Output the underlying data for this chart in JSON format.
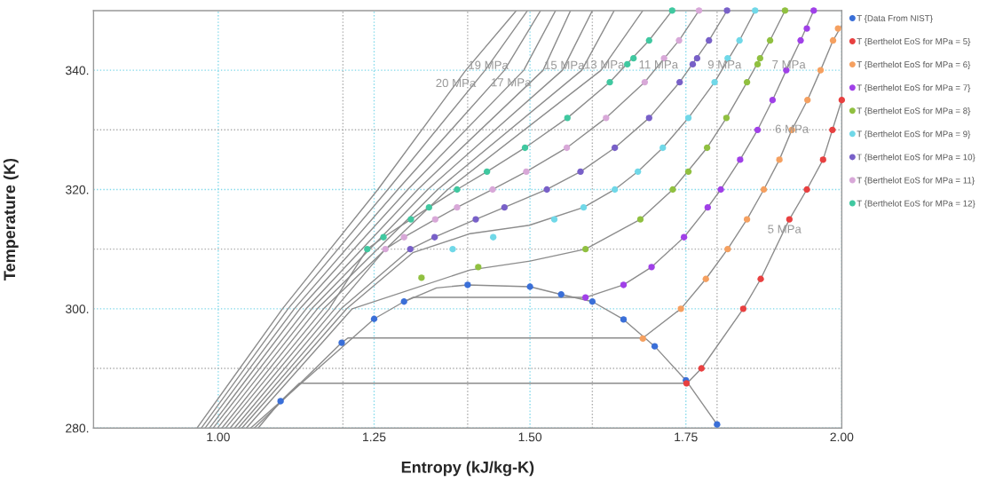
{
  "chart_data": {
    "type": "scatter",
    "xlabel": "Entropy (kJ/kg-K)",
    "ylabel": "Temperature (K)",
    "xlim": [
      0.8,
      2.0
    ],
    "ylim": [
      280,
      350
    ],
    "xticks": [
      {
        "value": 1.0,
        "label": "1.00"
      },
      {
        "value": 1.2,
        "label": null
      },
      {
        "value": 1.25,
        "label": "1.25"
      },
      {
        "value": 1.4,
        "label": null
      },
      {
        "value": 1.5,
        "label": "1.50"
      },
      {
        "value": 1.6,
        "label": null
      },
      {
        "value": 1.75,
        "label": "1.75"
      },
      {
        "value": 1.8,
        "label": null
      },
      {
        "value": 2.0,
        "label": "2.00"
      }
    ],
    "yticks": [
      {
        "value": 280,
        "label": "280."
      },
      {
        "value": 290,
        "label": null
      },
      {
        "value": 300,
        "label": "300."
      },
      {
        "value": 310,
        "label": null
      },
      {
        "value": 320,
        "label": "320."
      },
      {
        "value": 330,
        "label": null
      },
      {
        "value": 340,
        "label": "340."
      }
    ],
    "grid": true,
    "legend": "top right",
    "annotations": [
      {
        "text": "20 MPa",
        "x": 1.381,
        "y": 337.7
      },
      {
        "text": "19 MPa",
        "x": 1.433,
        "y": 340.7
      },
      {
        "text": "17 MPa",
        "x": 1.4695,
        "y": 337.8
      },
      {
        "text": "15 MPa",
        "x": 1.555,
        "y": 340.7
      },
      {
        "text": "13 MPa",
        "x": 1.619,
        "y": 340.8
      },
      {
        "text": "11 MPa",
        "x": 1.706,
        "y": 340.8
      },
      {
        "text": "9 MPa",
        "x": 1.812,
        "y": 340.8
      },
      {
        "text": "7 MPa",
        "x": 1.915,
        "y": 340.8
      },
      {
        "text": "6 MPa",
        "x": 1.92,
        "y": 330
      },
      {
        "text": "5 MPa",
        "x": 1.908,
        "y": 313.2
      }
    ],
    "series": [
      {
        "type": "line",
        "color": "#8c8c8c",
        "marker": "none",
        "x": [
          0.966,
          1.103,
          1.256,
          1.397,
          1.478
        ],
        "values": [
          280,
          300,
          320,
          340,
          350
        ]
      },
      {
        "type": "line",
        "color": "#8c8c8c",
        "marker": "none",
        "x": [
          0.973,
          1.112,
          1.272,
          1.428,
          1.496
        ],
        "values": [
          280,
          300,
          320,
          340,
          350
        ]
      },
      {
        "type": "line",
        "color": "#8c8c8c",
        "marker": "none",
        "x": [
          0.979,
          1.122,
          1.288,
          1.459,
          1.517
        ],
        "values": [
          280,
          300,
          320,
          340,
          350
        ]
      },
      {
        "type": "line",
        "color": "#8c8c8c",
        "marker": "none",
        "x": [
          0.986,
          1.131,
          1.304,
          1.49,
          1.541
        ],
        "values": [
          280,
          300,
          320,
          340,
          350
        ]
      },
      {
        "type": "line",
        "color": "#8c8c8c",
        "marker": "none",
        "x": [
          0.992,
          1.141,
          1.32,
          1.521,
          1.565
        ],
        "values": [
          280,
          300,
          320,
          340,
          350
        ]
      },
      {
        "type": "line",
        "color": "#8c8c8c",
        "marker": "none",
        "x": [
          0.999,
          1.15,
          1.336,
          1.552,
          1.6
        ],
        "values": [
          280,
          300,
          320,
          340,
          350
        ]
      },
      {
        "type": "line",
        "color": "#8c8c8c",
        "marker": "none",
        "x": [
          1.006,
          1.159,
          1.352,
          1.583,
          1.635
        ],
        "values": [
          280,
          300,
          320,
          340,
          350
        ]
      },
      {
        "type": "line",
        "color": "#8c8c8c",
        "marker": "none",
        "x": [
          1.012,
          1.169,
          1.368,
          1.614,
          1.681
        ],
        "values": [
          280,
          300,
          320,
          340,
          350
        ]
      },
      {
        "type": "line",
        "color": "#8c8c8c",
        "marker": "none",
        "x": [
          1.019,
          1.178,
          1.239,
          1.265,
          1.309,
          1.338,
          1.383,
          1.431,
          1.492,
          1.56,
          1.628,
          1.691,
          1.728
        ],
        "values": [
          280,
          300,
          310,
          312,
          315,
          317,
          320,
          323,
          327,
          332,
          338,
          345,
          350
        ]
      },
      {
        "type": "line",
        "color": "#8c8c8c",
        "marker": "none",
        "x": [
          1.026,
          1.187,
          1.268,
          1.298,
          1.348,
          1.383,
          1.44,
          1.494,
          1.559,
          1.622,
          1.684,
          1.739,
          1.771
        ],
        "values": [
          280,
          300,
          310,
          312,
          315,
          317,
          320,
          323,
          327,
          332,
          338,
          345,
          350
        ]
      },
      {
        "type": "line",
        "color": "#8c8c8c",
        "marker": "none",
        "x": [
          1.032,
          1.197,
          1.308,
          1.347,
          1.413,
          1.459,
          1.527,
          1.581,
          1.636,
          1.691,
          1.74,
          1.787,
          1.816
        ],
        "values": [
          280,
          300,
          310,
          312,
          315,
          317,
          320,
          323,
          327,
          332,
          338,
          345,
          350
        ]
      },
      {
        "type": "line",
        "color": "#8c8c8c",
        "marker": "none",
        "x": [
          1.038,
          1.206,
          1.312,
          1.404,
          1.499,
          1.586,
          1.636,
          1.673,
          1.713,
          1.754,
          1.796,
          1.836,
          1.861
        ],
        "values": [
          280,
          300,
          309.4,
          312.6,
          314,
          317,
          320,
          323,
          327,
          332,
          338,
          345,
          350
        ]
      },
      {
        "type": "line",
        "color": "#8c8c8c",
        "marker": "none",
        "x": [
          1.045,
          1.215,
          1.404,
          1.5,
          1.589,
          1.677,
          1.729,
          1.784,
          1.815,
          1.848,
          1.885,
          1.909
        ],
        "values": [
          280,
          300,
          306.5,
          308,
          310,
          315,
          320,
          327,
          332,
          338,
          345,
          350
        ]
      },
      {
        "type": "line",
        "color": "#8c8c8c",
        "marker": "none",
        "x": [
          1.052,
          1.25,
          1.298,
          1.312,
          1.589,
          1.65,
          1.695,
          1.747,
          1.785,
          1.806,
          1.837,
          1.865,
          1.889,
          1.911,
          1.934,
          1.955
        ],
        "values": [
          280,
          298.3,
          301.2,
          301.9,
          301.9,
          304,
          307,
          312,
          317,
          320,
          325,
          330,
          335,
          340,
          345,
          350
        ]
      },
      {
        "type": "line",
        "color": "#8c8c8c",
        "marker": "none",
        "x": [
          1.058,
          1.198,
          1.208,
          1.681,
          1.742,
          1.782,
          1.817,
          1.848,
          1.875,
          1.9,
          1.92,
          1.945,
          1.966,
          1.986,
          2.0
        ],
        "values": [
          280,
          294.3,
          295.1,
          295.1,
          300,
          305,
          310,
          315,
          320,
          325,
          330,
          335,
          340,
          345,
          347.5
        ]
      },
      {
        "type": "line",
        "color": "#8c8c8c",
        "marker": "none",
        "x": [
          1.064,
          1.1,
          1.13,
          1.752,
          1.775,
          1.842,
          1.87,
          1.916,
          1.944,
          1.97,
          1.985,
          2.0
        ],
        "values": [
          280,
          284.5,
          287.5,
          287.5,
          290,
          300,
          305,
          315,
          320,
          325,
          330,
          335
        ]
      },
      {
        "type": "line",
        "color": "#8c8c8c",
        "marker": "none",
        "x": [
          1.298,
          1.35,
          1.4,
          1.5,
          1.55,
          1.6,
          1.65,
          1.7,
          1.75,
          1.8
        ],
        "values": [
          301.2,
          303.5,
          304,
          303.7,
          302.4,
          301.2,
          298.2,
          293.7,
          288,
          280.6
        ]
      },
      {
        "name": "T {Data From NIST}",
        "color": "#3a6fd8",
        "marker": "circle",
        "x": [
          1.1,
          1.198,
          1.25,
          1.298,
          1.4,
          1.5,
          1.55,
          1.6,
          1.65,
          1.7,
          1.75,
          1.8
        ],
        "values": [
          284.5,
          294.3,
          298.3,
          301.2,
          304,
          303.7,
          302.4,
          301.2,
          298.2,
          293.7,
          288,
          280.6
        ]
      },
      {
        "name": "T {Berthelot EoS for MPa = 5}",
        "color": "#e84040",
        "marker": "circle",
        "x": [
          1.751,
          1.775,
          1.842,
          1.87,
          1.916,
          1.944,
          1.97,
          1.985,
          2.0
        ],
        "values": [
          287.5,
          290,
          300,
          305,
          315,
          320,
          325,
          330,
          335
        ]
      },
      {
        "name": "T {Berthelot EoS for MPa = 6}",
        "color": "#f5a060",
        "marker": "circle",
        "x": [
          1.681,
          1.742,
          1.782,
          1.817,
          1.848,
          1.875,
          1.9,
          1.92,
          1.945,
          1.966,
          1.986,
          1.994
        ],
        "values": [
          295,
          300,
          305,
          310,
          315,
          320,
          325,
          330,
          335,
          340,
          345,
          347
        ]
      },
      {
        "name": "T {Berthelot EoS for MPa = 7}",
        "color": "#a040e8",
        "marker": "circle",
        "x": [
          1.589,
          1.65,
          1.695,
          1.747,
          1.785,
          1.806,
          1.837,
          1.865,
          1.889,
          1.911,
          1.934,
          1.944,
          1.955
        ],
        "values": [
          301.9,
          304,
          307,
          312,
          317,
          320,
          325,
          330,
          335,
          340,
          345,
          347,
          350
        ]
      },
      {
        "name": "T {Berthelot EoS for MPa = 8}",
        "color": "#90c040",
        "marker": "circle",
        "x": [
          1.326,
          1.417,
          1.589,
          1.677,
          1.729,
          1.754,
          1.784,
          1.815,
          1.848,
          1.865,
          1.869,
          1.885,
          1.909
        ],
        "values": [
          305.2,
          307,
          310,
          315,
          320,
          323,
          327,
          332,
          338,
          341,
          342,
          345,
          350
        ]
      },
      {
        "name": "T {Berthelot EoS for MPa = 9}",
        "color": "#70d8e8",
        "marker": "circle",
        "x": [
          1.376,
          1.441,
          1.539,
          1.586,
          1.636,
          1.673,
          1.713,
          1.754,
          1.796,
          1.817,
          1.836,
          1.861
        ],
        "values": [
          310,
          312,
          315,
          317,
          320,
          323,
          327,
          332,
          338,
          342,
          345,
          350
        ]
      },
      {
        "name": "T {Berthelot EoS for MPa = 10}",
        "color": "#7860c8",
        "marker": "circle",
        "x": [
          1.308,
          1.347,
          1.413,
          1.459,
          1.527,
          1.581,
          1.636,
          1.691,
          1.74,
          1.761,
          1.768,
          1.787,
          1.816
        ],
        "values": [
          310,
          312,
          315,
          317,
          320,
          323,
          327,
          332,
          338,
          341,
          342,
          345,
          350
        ]
      },
      {
        "name": "T {Berthelot EoS for MPa = 11}",
        "color": "#d8a8d8",
        "marker": "circle",
        "x": [
          1.268,
          1.298,
          1.348,
          1.383,
          1.44,
          1.494,
          1.559,
          1.622,
          1.684,
          1.715,
          1.739,
          1.771
        ],
        "values": [
          310,
          312,
          315,
          317,
          320,
          323,
          327,
          332,
          338,
          342,
          345,
          350
        ]
      },
      {
        "name": "T {Berthelot EoS for MPa = 12}",
        "color": "#40c8a0",
        "marker": "circle",
        "x": [
          1.239,
          1.265,
          1.309,
          1.338,
          1.383,
          1.431,
          1.492,
          1.56,
          1.628,
          1.656,
          1.666,
          1.691,
          1.728
        ],
        "values": [
          310,
          312,
          315,
          317,
          320,
          323,
          327,
          332,
          338,
          341,
          342,
          345,
          350
        ]
      }
    ]
  }
}
